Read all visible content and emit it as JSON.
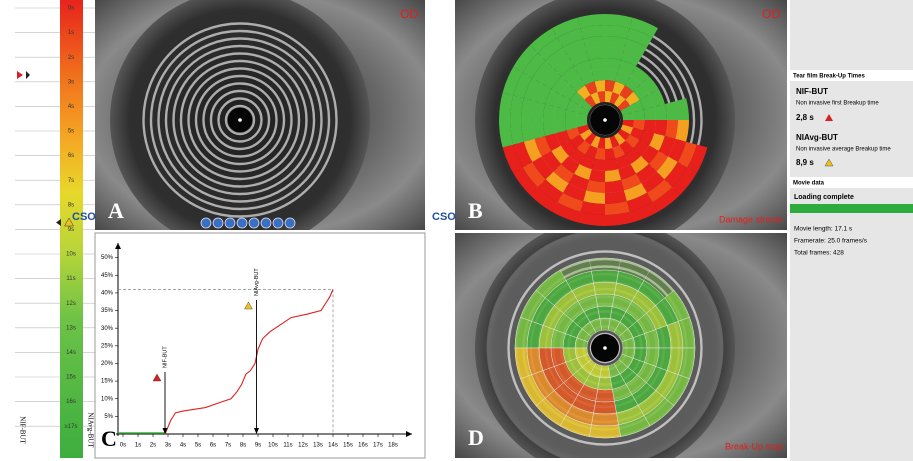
{
  "scale": {
    "labels": [
      "0s",
      "1s",
      "2s",
      "3s",
      "4s",
      "5s",
      "6s",
      "7s",
      "8s",
      "9s",
      "10s",
      "11s",
      "12s",
      "13s",
      "14s",
      "15s",
      "16s",
      "≥17s"
    ],
    "left_label": "NIF-BUT",
    "right_label": "NIAvg-BUT"
  },
  "panels": [
    {
      "letter": "A",
      "eye": "OD"
    },
    {
      "letter": "B",
      "eye": "OD",
      "caption": "Damage stream"
    },
    {
      "letter": "C"
    },
    {
      "letter": "D",
      "caption": "Break-Up map"
    }
  ],
  "logos": [
    "CSO",
    "CSO"
  ],
  "graph": {
    "type": "line",
    "color": "#e02020",
    "x": [
      2.8,
      3,
      3.2,
      3.5,
      4,
      5.5,
      6.5,
      7.2,
      7.6,
      7.9,
      8.2,
      8.5,
      8.8,
      9,
      9.3,
      9.8,
      10.5,
      11.2,
      12.3,
      13.2,
      13.5,
      13.8,
      14
    ],
    "values": [
      0,
      2,
      4,
      6,
      6.5,
      7.5,
      9,
      10,
      12,
      14,
      17,
      18,
      20,
      24,
      27,
      29,
      31,
      33,
      34,
      35,
      37,
      39,
      41
    ],
    "xlim": [
      0,
      19
    ],
    "ylim": [
      0,
      55
    ],
    "xticks": [
      {
        "value": 0,
        "label": "0s"
      },
      {
        "value": 1,
        "label": "1s"
      },
      {
        "value": 2,
        "label": "2s"
      },
      {
        "value": 3,
        "label": "3s"
      },
      {
        "value": 4,
        "label": "4s"
      },
      {
        "value": 5,
        "label": "5s"
      },
      {
        "value": 6,
        "label": "6s"
      },
      {
        "value": 7,
        "label": "7s"
      },
      {
        "value": 8,
        "label": "8s"
      },
      {
        "value": 9,
        "label": "9s"
      },
      {
        "value": 10,
        "label": "10s"
      },
      {
        "value": 11,
        "label": "11s"
      },
      {
        "value": 12,
        "label": "12s"
      },
      {
        "value": 13,
        "label": "13s"
      },
      {
        "value": 14,
        "label": "14s"
      },
      {
        "value": 15,
        "label": "15s"
      },
      {
        "value": 16,
        "label": "16s"
      },
      {
        "value": 17,
        "label": "17s"
      },
      {
        "value": 18,
        "label": "18s"
      }
    ],
    "yticks": [
      {
        "value": 5,
        "label": "5%"
      },
      {
        "value": 10,
        "label": "10%"
      },
      {
        "value": 15,
        "label": "15%"
      },
      {
        "value": 20,
        "label": "20%"
      },
      {
        "value": 25,
        "label": "25%"
      },
      {
        "value": 30,
        "label": "30%"
      },
      {
        "value": 35,
        "label": "35%"
      },
      {
        "value": 40,
        "label": "40%"
      },
      {
        "value": 45,
        "label": "45%"
      },
      {
        "value": 50,
        "label": "50%"
      }
    ],
    "markers": [
      {
        "label": "NIF-BUT",
        "x": 2.8
      },
      {
        "label": "NIAvg-BUT",
        "x": 8.9
      }
    ],
    "reference": {
      "x": 14,
      "y": 41
    }
  },
  "sidebar": {
    "section1": "Tear film Break-Up Times",
    "items": [
      {
        "name": "NIF-BUT",
        "description": "Non invasive first Breakup time",
        "value": "2,8 s"
      },
      {
        "name": "NIAvg-BUT",
        "description": "Non invasive average Breakup time",
        "value": "8,9 s"
      }
    ],
    "section2": "Movie data",
    "status": "Loading complete",
    "details": [
      "Movie length: 17.1 s",
      "Framerate: 25.0 frames/s",
      "Total frames: 428"
    ]
  }
}
